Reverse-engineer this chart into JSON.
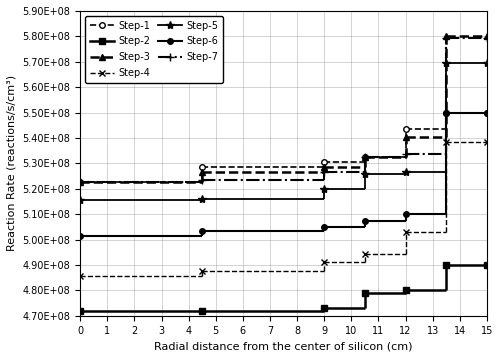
{
  "xlabel": "Radial distance from the center of silicon (cm)",
  "ylabel": "Reaction Rate (reactions/s/cm³)",
  "xlim": [
    0,
    15
  ],
  "ylim": [
    470000000.0,
    590000000.0
  ],
  "yticks": [
    470000000.0,
    480000000.0,
    490000000.0,
    500000000.0,
    510000000.0,
    520000000.0,
    530000000.0,
    540000000.0,
    550000000.0,
    560000000.0,
    570000000.0,
    580000000.0,
    590000000.0
  ],
  "xticks": [
    0,
    1,
    2,
    3,
    4,
    5,
    6,
    7,
    8,
    9,
    10,
    11,
    12,
    13,
    14,
    15
  ],
  "segments": {
    "Step-1": {
      "x_edges": [
        0,
        4.5,
        9,
        10.5,
        12,
        13.5,
        15
      ],
      "y_vals": [
        522500000.0,
        528500000.0,
        530500000.0,
        532500000.0,
        543500000.0,
        550000000.0
      ],
      "linestyle": "--",
      "marker": "o",
      "markerfacecolor": "white",
      "linewidth": 1.2,
      "markersize": 4
    },
    "Step-2": {
      "x_edges": [
        0,
        4.5,
        9,
        10.5,
        12,
        13.5,
        15
      ],
      "y_vals": [
        472000000.0,
        472000000.0,
        473000000.0,
        479000000.0,
        480000000.0,
        490000000.0
      ],
      "linestyle": "-",
      "marker": "s",
      "markerfacecolor": "black",
      "linewidth": 1.8,
      "markersize": 4
    },
    "Step-3": {
      "x_edges": [
        0,
        4.5,
        9,
        10.5,
        12,
        13.5,
        15
      ],
      "y_vals": [
        522500000.0,
        526500000.0,
        528500000.0,
        532500000.0,
        540500000.0,
        580000000.0
      ],
      "linestyle": "--",
      "marker": "^",
      "markerfacecolor": "black",
      "linewidth": 1.8,
      "markersize": 4
    },
    "Step-4": {
      "x_edges": [
        0,
        4.5,
        9,
        10.5,
        12,
        13.5,
        15
      ],
      "y_vals": [
        485500000.0,
        487500000.0,
        491000000.0,
        494500000.0,
        503000000.0,
        538500000.0
      ],
      "linestyle": "--",
      "marker": "x",
      "markerfacecolor": "black",
      "linewidth": 1.0,
      "markersize": 5
    },
    "Step-5": {
      "x_edges": [
        0,
        4.5,
        9,
        10.5,
        12,
        13.5,
        15
      ],
      "y_vals": [
        515500000.0,
        516000000.0,
        520000000.0,
        526000000.0,
        526500000.0,
        569500000.0
      ],
      "linestyle": "-",
      "marker": "*",
      "markerfacecolor": "black",
      "linewidth": 1.3,
      "markersize": 6
    },
    "Step-6": {
      "x_edges": [
        0,
        4.5,
        9,
        10.5,
        12,
        13.5,
        15
      ],
      "y_vals": [
        501500000.0,
        503500000.0,
        505000000.0,
        507500000.0,
        510000000.0,
        550000000.0
      ],
      "linestyle": "-",
      "marker": "o",
      "markerfacecolor": "black",
      "linewidth": 1.5,
      "markersize": 4
    },
    "Step-7": {
      "x_edges": [
        0,
        4.5,
        9,
        10.5,
        12,
        13.5,
        15
      ],
      "y_vals": [
        522500000.0,
        523500000.0,
        526500000.0,
        532500000.0,
        533500000.0,
        579500000.0
      ],
      "linestyle": "-.",
      "marker": "+",
      "markerfacecolor": "black",
      "linewidth": 1.5,
      "markersize": 6
    }
  },
  "legend_order": [
    "Step-1",
    "Step-2",
    "Step-3",
    "Step-4",
    "Step-5",
    "Step-6",
    "Step-7"
  ],
  "figsize": [
    5.0,
    3.58
  ],
  "dpi": 100
}
